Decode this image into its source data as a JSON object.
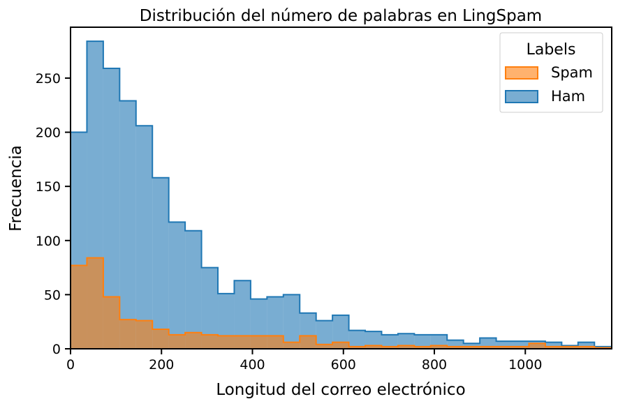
{
  "chart_data": {
    "type": "histogram",
    "title": "Distribución del número de palabras en LingSpam",
    "xlabel": "Longitud del correo electrónico",
    "ylabel": "Frecuencia",
    "xlim": [
      0,
      1190
    ],
    "ylim": [
      0,
      297
    ],
    "xticks": [
      0,
      200,
      400,
      600,
      800,
      1000
    ],
    "yticks": [
      0,
      50,
      100,
      150,
      200,
      250
    ],
    "bin_edges": [
      0,
      36,
      72,
      108,
      144,
      180,
      216,
      252,
      288,
      324,
      360,
      396,
      432,
      468,
      504,
      540,
      576,
      612,
      648,
      684,
      720,
      756,
      792,
      828,
      864,
      900,
      936,
      972,
      1008,
      1044,
      1080,
      1116,
      1152,
      1190
    ],
    "legend": {
      "title": "Labels",
      "position": "top-right"
    },
    "series": [
      {
        "name": "Spam",
        "color": "#ff7f0e",
        "values": [
          77,
          84,
          48,
          27,
          26,
          18,
          13,
          15,
          13,
          12,
          12,
          12,
          12,
          6,
          12,
          4,
          6,
          2,
          3,
          2,
          3,
          2,
          3,
          2,
          2,
          2,
          2,
          2,
          5,
          2,
          2,
          2,
          1
        ]
      },
      {
        "name": "Ham",
        "color": "#1f77b4",
        "values": [
          200,
          284,
          259,
          229,
          206,
          158,
          117,
          109,
          75,
          51,
          63,
          46,
          48,
          50,
          33,
          26,
          31,
          17,
          16,
          13,
          14,
          13,
          13,
          8,
          5,
          10,
          7,
          7,
          7,
          6,
          3,
          6,
          2
        ]
      }
    ]
  }
}
